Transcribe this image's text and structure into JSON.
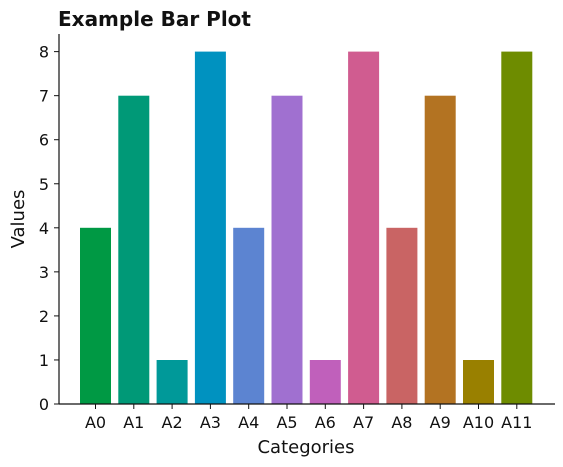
{
  "chart_data": {
    "type": "bar",
    "title": "Example Bar Plot",
    "xlabel": "Categories",
    "ylabel": "Values",
    "categories": [
      "A0",
      "A1",
      "A2",
      "A3",
      "A4",
      "A5",
      "A6",
      "A7",
      "A8",
      "A9",
      "A10",
      "A11"
    ],
    "values": [
      4,
      7,
      1,
      8,
      4,
      7,
      1,
      8,
      4,
      7,
      1,
      8
    ],
    "colors": [
      "#009944",
      "#009977",
      "#009999",
      "#0092c0",
      "#5c84d1",
      "#a070d0",
      "#c060bb",
      "#d05c90",
      "#c96464",
      "#b37322",
      "#998000",
      "#6e8c00"
    ],
    "ylim": [
      0,
      8.4
    ],
    "yticks": [
      0,
      1,
      2,
      3,
      4,
      5,
      6,
      7,
      8
    ],
    "grid": false,
    "legend": "none"
  }
}
